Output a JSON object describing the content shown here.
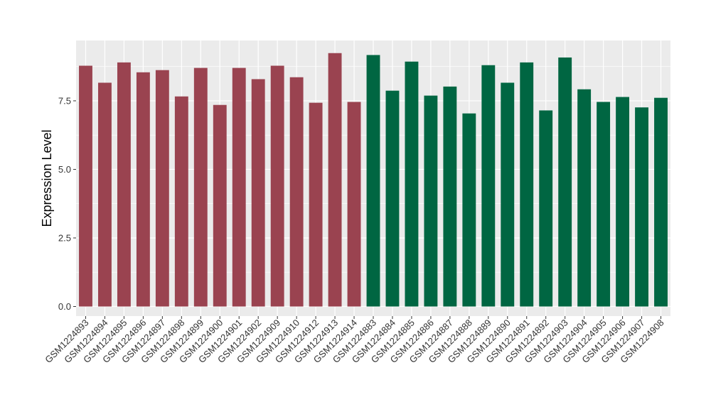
{
  "chart_data": {
    "type": "bar",
    "title": "",
    "xlabel": "",
    "ylabel": "Expression Level",
    "ylim": [
      -0.35,
      9.7
    ],
    "yticks": [
      0.0,
      2.5,
      5.0,
      7.5
    ],
    "ytick_labels": [
      "0.0",
      "2.5",
      "5.0",
      "7.5"
    ],
    "grid": true,
    "legend": "none",
    "categories": [
      "GSM1224893",
      "GSM1224894",
      "GSM1224895",
      "GSM1224896",
      "GSM1224897",
      "GSM1224898",
      "GSM1224899",
      "GSM1224900",
      "GSM1224901",
      "GSM1224902",
      "GSM1224909",
      "GSM1224910",
      "GSM1224912",
      "GSM1224913",
      "GSM1224914",
      "GSM1224883",
      "GSM1224884",
      "GSM1224885",
      "GSM1224886",
      "GSM1224887",
      "GSM1224888",
      "GSM1224889",
      "GSM1224890",
      "GSM1224891",
      "GSM1224892",
      "GSM1224903",
      "GSM1224904",
      "GSM1224905",
      "GSM1224906",
      "GSM1224907",
      "GSM1224908"
    ],
    "values": [
      8.78,
      8.16,
      8.9,
      8.54,
      8.62,
      7.66,
      8.7,
      7.35,
      8.7,
      8.29,
      8.78,
      8.36,
      7.43,
      9.24,
      7.46,
      9.17,
      7.87,
      8.93,
      7.69,
      8.02,
      7.04,
      8.8,
      8.16,
      8.9,
      7.15,
      9.08,
      7.92,
      7.46,
      7.64,
      7.26,
      7.61
    ],
    "groups": [
      "a",
      "a",
      "a",
      "a",
      "a",
      "a",
      "a",
      "a",
      "a",
      "a",
      "a",
      "a",
      "a",
      "a",
      "a",
      "b",
      "b",
      "b",
      "b",
      "b",
      "b",
      "b",
      "b",
      "b",
      "b",
      "b",
      "b",
      "b",
      "b",
      "b",
      "b"
    ],
    "colors": {
      "a": "#9a4350",
      "b": "#006642"
    },
    "panel_background": "#ebebeb",
    "grid_color": "#ffffff"
  }
}
